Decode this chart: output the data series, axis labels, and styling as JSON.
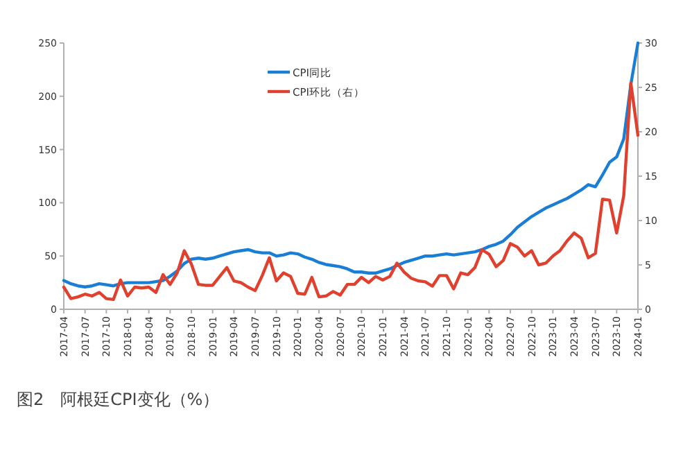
{
  "chart_data": {
    "type": "line",
    "title": "图2　阿根廷CPI变化（%）",
    "x": [
      "2017-04",
      "2017-05",
      "2017-06",
      "2017-07",
      "2017-08",
      "2017-09",
      "2017-10",
      "2017-11",
      "2017-12",
      "2018-01",
      "2018-02",
      "2018-03",
      "2018-04",
      "2018-05",
      "2018-06",
      "2018-07",
      "2018-08",
      "2018-09",
      "2018-10",
      "2018-11",
      "2018-12",
      "2019-01",
      "2019-02",
      "2019-03",
      "2019-04",
      "2019-05",
      "2019-06",
      "2019-07",
      "2019-08",
      "2019-09",
      "2019-10",
      "2019-11",
      "2019-12",
      "2020-01",
      "2020-02",
      "2020-03",
      "2020-04",
      "2020-05",
      "2020-06",
      "2020-07",
      "2020-08",
      "2020-09",
      "2020-10",
      "2020-11",
      "2020-12",
      "2021-01",
      "2021-02",
      "2021-03",
      "2021-04",
      "2021-05",
      "2021-06",
      "2021-07",
      "2021-08",
      "2021-09",
      "2021-10",
      "2021-11",
      "2021-12",
      "2022-01",
      "2022-02",
      "2022-03",
      "2022-04",
      "2022-05",
      "2022-06",
      "2022-07",
      "2022-08",
      "2022-09",
      "2022-10",
      "2022-11",
      "2022-12",
      "2023-01",
      "2023-02",
      "2023-03",
      "2023-04",
      "2023-05",
      "2023-06",
      "2023-07",
      "2023-08",
      "2023-09",
      "2023-10",
      "2023-11",
      "2023-12",
      "2024-01"
    ],
    "series": [
      {
        "name": "CPI同比",
        "color": "#1a7fd4",
        "values": [
          27,
          24,
          22,
          21,
          22,
          24,
          23,
          22,
          24,
          25,
          25,
          25,
          25,
          26,
          27,
          31,
          36,
          43,
          47,
          48,
          47,
          48,
          50,
          52,
          54,
          55,
          56,
          54,
          53,
          53,
          50,
          51,
          53,
          52,
          49,
          47,
          44,
          42,
          41,
          40,
          38,
          35,
          35,
          34,
          34,
          36,
          38,
          41,
          44,
          46,
          48,
          50,
          50,
          51,
          52,
          51,
          52,
          53,
          54,
          56,
          59,
          61,
          64,
          70,
          77,
          82,
          87,
          91,
          95,
          98,
          101,
          104,
          108,
          112,
          117,
          115,
          126,
          138,
          143,
          160,
          211,
          250
        ]
      },
      {
        "name": "CPI环比（右）",
        "color": "#e0412f",
        "axis": "y2",
        "values": [
          2.5,
          1.2,
          1.4,
          1.7,
          1.5,
          1.9,
          1.2,
          1.1,
          3.3,
          1.5,
          2.5,
          2.4,
          2.5,
          1.9,
          3.9,
          2.8,
          4.1,
          6.6,
          5.1,
          2.8,
          2.7,
          2.7,
          3.7,
          4.7,
          3.2,
          3.0,
          2.5,
          2.1,
          3.8,
          5.8,
          3.2,
          4.1,
          3.7,
          1.8,
          1.7,
          3.6,
          1.4,
          1.5,
          2.0,
          1.6,
          2.8,
          2.8,
          3.6,
          3.0,
          3.7,
          3.3,
          3.7,
          5.2,
          4.2,
          3.5,
          3.2,
          3.1,
          2.6,
          3.8,
          3.8,
          2.3,
          4.1,
          3.9,
          4.7,
          6.7,
          6.2,
          4.8,
          5.5,
          7.4,
          7.0,
          6.0,
          6.6,
          5.0,
          5.2,
          6.0,
          6.6,
          7.7,
          8.6,
          8.0,
          5.8,
          6.3,
          12.4,
          12.3,
          8.6,
          12.8,
          25.5,
          19.6
        ]
      }
    ],
    "xlim": [
      "2017-04",
      "2024-01"
    ],
    "xticks": [
      "2017-04",
      "2017-07",
      "2017-10",
      "2018-01",
      "2018-04",
      "2018-07",
      "2018-10",
      "2019-01",
      "2019-04",
      "2019-07",
      "2019-10",
      "2020-01",
      "2020-04",
      "2020-07",
      "2020-10",
      "2021-01",
      "2021-04",
      "2021-07",
      "2021-10",
      "2022-01",
      "2022-04",
      "2022-07",
      "2022-10",
      "2023-01",
      "2023-04",
      "2023-07",
      "2023-10",
      "2024-01"
    ],
    "ylim": [
      0,
      250
    ],
    "yticks": [
      0,
      50,
      100,
      150,
      200,
      250
    ],
    "y2lim": [
      0,
      30
    ],
    "y2ticks": [
      0,
      5,
      10,
      15,
      20,
      25,
      30
    ],
    "legend": "top",
    "grid": false,
    "marker": "none",
    "line_style": "solid"
  }
}
